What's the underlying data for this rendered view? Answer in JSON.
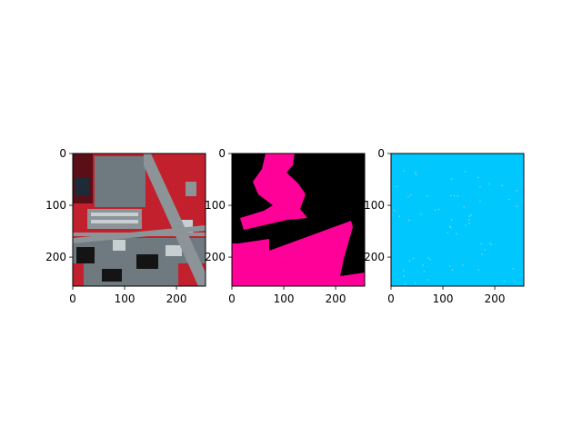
{
  "chart_data": [
    {
      "type": "image",
      "panel": "false-color-satellite",
      "colors": {
        "vegetation": "#c2202c",
        "dark_vegetation": "#5a0e16",
        "road": "#8c9498",
        "building": "#6e7a80",
        "roof_light": "#c8cfd2",
        "shadow": "#141414",
        "water": "#1e2a38"
      },
      "x_ticks": [
        "0",
        "100",
        "200"
      ],
      "y_ticks": [
        "0",
        "100",
        "200"
      ],
      "xlim": [
        0,
        256
      ],
      "ylim": [
        256,
        0
      ]
    },
    {
      "type": "image",
      "panel": "segmentation-mask",
      "colors": {
        "background": "#000000",
        "foreground": "#ff0099"
      },
      "x_ticks": [
        "0",
        "100",
        "200"
      ],
      "y_ticks": [
        "0",
        "100",
        "200"
      ],
      "xlim": [
        0,
        256
      ],
      "ylim": [
        256,
        0
      ]
    },
    {
      "type": "image",
      "panel": "prediction-map",
      "colors": {
        "background": "#00c8ff",
        "speckle": "#9fd8c8"
      },
      "x_ticks": [
        "0",
        "100",
        "200"
      ],
      "y_ticks": [
        "0",
        "100",
        "200"
      ],
      "xlim": [
        0,
        256
      ],
      "ylim": [
        256,
        0
      ]
    }
  ]
}
